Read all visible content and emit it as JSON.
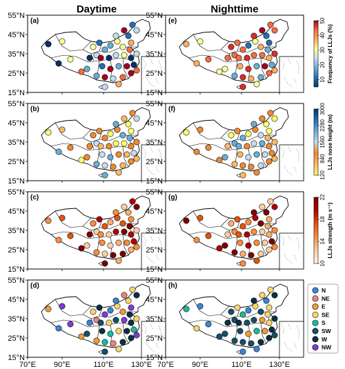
{
  "columns": [
    "Daytime",
    "Nighttime"
  ],
  "lat_ticks": [
    "55°N",
    "45°N",
    "35°N",
    "25°N",
    "15°N"
  ],
  "lon_ticks": [
    "70°E",
    "90°E",
    "110°E",
    "130°E"
  ],
  "panel_labels": [
    "(a)",
    "(b)",
    "(c)",
    "(d)",
    "(e)",
    "(f)",
    "(g)",
    "(h)"
  ],
  "rows": [
    {
      "colorbar": {
        "label": "Frequency of LLJs (%)",
        "ticks": [
          "10",
          "20",
          "30",
          "40",
          "50"
        ],
        "range": [
          5,
          50
        ],
        "colors": [
          "#08306b",
          "#2171b5",
          "#6baed6",
          "#c6dbef",
          "#ffff99",
          "#fdae61",
          "#f46d43",
          "#a50026"
        ]
      }
    },
    {
      "colorbar": {
        "label": "LLJs nose height (m)",
        "ticks": [
          "120",
          "840",
          "1560",
          "2280",
          "3000"
        ],
        "range": [
          120,
          3000
        ],
        "colors": [
          "#ffff66",
          "#fdb863",
          "#f08a30",
          "#c6dbef",
          "#6baed6",
          "#2171b5",
          "#08306b"
        ]
      }
    },
    {
      "colorbar": {
        "label": "LLJs strength (m s⁻¹)",
        "ticks": [
          "10",
          "14",
          "18",
          "22"
        ],
        "range": [
          10,
          22
        ],
        "colors": [
          "#fff5eb",
          "#fdd0a2",
          "#fd8d3c",
          "#e6550d",
          "#b30000",
          "#7f0000"
        ]
      }
    },
    {
      "legend": [
        {
          "label": "N",
          "color": "#3a86d6"
        },
        {
          "label": "NE",
          "color": "#f08080"
        },
        {
          "label": "E",
          "color": "#f39c32"
        },
        {
          "label": "SE",
          "color": "#f5d76e"
        },
        {
          "label": "S",
          "color": "#1abc9c"
        },
        {
          "label": "SW",
          "color": "#15506b"
        },
        {
          "label": "W",
          "color": "#0b3043"
        },
        {
          "label": "NW",
          "color": "#7d3cdb"
        }
      ]
    }
  ]
}
